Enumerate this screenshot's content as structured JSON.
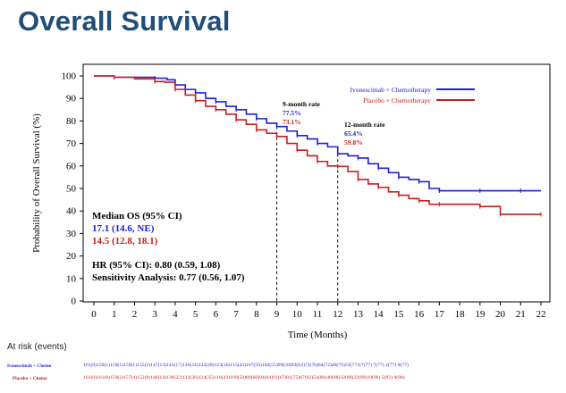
{
  "slide": {
    "title": "Overall Survival"
  },
  "chart_data": {
    "type": "line",
    "xlabel": "Time (Months)",
    "ylabel": "Probability of Overall Survival (%)",
    "xlim": [
      0,
      22
    ],
    "ylim": [
      0,
      100
    ],
    "xticks": [
      0,
      1,
      2,
      3,
      4,
      5,
      6,
      7,
      8,
      9,
      10,
      11,
      12,
      13,
      14,
      15,
      16,
      17,
      18,
      19,
      20,
      21,
      22
    ],
    "yticks": [
      0,
      10,
      20,
      30,
      40,
      50,
      60,
      70,
      80,
      90,
      100
    ],
    "grid": false,
    "legend_position": "top-right",
    "series": [
      {
        "name": "Ivonescimab + Chemotherapy",
        "color": "#1f1fd6",
        "points": [
          [
            0,
            100
          ],
          [
            0.5,
            100
          ],
          [
            1.0,
            99.4
          ],
          [
            2.0,
            99.4
          ],
          [
            3.0,
            99
          ],
          [
            3.6,
            98.3
          ],
          [
            4.0,
            96
          ],
          [
            4.5,
            94
          ],
          [
            5.0,
            92.5
          ],
          [
            5.5,
            90
          ],
          [
            6.0,
            88.5
          ],
          [
            6.5,
            86.5
          ],
          [
            7.0,
            85
          ],
          [
            7.5,
            83
          ],
          [
            8.0,
            81
          ],
          [
            8.5,
            79
          ],
          [
            9.0,
            77.5
          ],
          [
            9.5,
            75.5
          ],
          [
            10.0,
            73.5
          ],
          [
            10.5,
            72
          ],
          [
            11.0,
            70
          ],
          [
            11.5,
            68.5
          ],
          [
            12.0,
            65.4
          ],
          [
            12.5,
            64.5
          ],
          [
            13.0,
            63.5
          ],
          [
            13.5,
            61
          ],
          [
            14.0,
            59
          ],
          [
            14.5,
            57
          ],
          [
            15.0,
            55
          ],
          [
            15.5,
            54
          ],
          [
            16.0,
            53
          ],
          [
            16.5,
            50
          ],
          [
            17.0,
            49
          ],
          [
            18.0,
            49
          ],
          [
            19.0,
            49
          ],
          [
            20.0,
            49
          ],
          [
            21.0,
            49
          ],
          [
            22.0,
            49
          ]
        ]
      },
      {
        "name": "Placebo + Chemotherapy",
        "color": "#c81e1e",
        "points": [
          [
            0,
            100
          ],
          [
            0.5,
            100
          ],
          [
            1.0,
            99.4
          ],
          [
            2.0,
            98.7
          ],
          [
            3.0,
            97.5
          ],
          [
            3.5,
            97.2
          ],
          [
            4.0,
            94
          ],
          [
            4.5,
            91.5
          ],
          [
            5.0,
            89
          ],
          [
            5.5,
            86.5
          ],
          [
            6.0,
            85
          ],
          [
            6.5,
            83
          ],
          [
            7.0,
            80.5
          ],
          [
            7.5,
            78.5
          ],
          [
            8.0,
            76
          ],
          [
            8.5,
            74.5
          ],
          [
            9.0,
            73.1
          ],
          [
            9.5,
            70
          ],
          [
            10.0,
            67
          ],
          [
            10.5,
            64.5
          ],
          [
            11.0,
            62
          ],
          [
            11.5,
            60
          ],
          [
            12.0,
            59.8
          ],
          [
            12.5,
            57.5
          ],
          [
            13.0,
            54
          ],
          [
            13.5,
            52
          ],
          [
            14.0,
            50.5
          ],
          [
            14.5,
            48.5
          ],
          [
            15.0,
            47
          ],
          [
            15.5,
            45.5
          ],
          [
            16.0,
            44.5
          ],
          [
            16.5,
            43
          ],
          [
            17.0,
            43
          ],
          [
            18.0,
            43
          ],
          [
            19.0,
            42
          ],
          [
            19.5,
            42
          ],
          [
            20.0,
            38.5
          ],
          [
            21.0,
            38.5
          ],
          [
            22.0,
            38.5
          ]
        ]
      }
    ],
    "annotations": {
      "nine_month": {
        "title": "9-month rate",
        "ivo": "77.5%",
        "pbo": "73.1%",
        "x": 9
      },
      "twelve_month": {
        "title": "12-month rate",
        "ivo": "65.4%",
        "pbo": "59.8%",
        "x": 12
      }
    },
    "stats": {
      "median_title": "Median OS (95% CI)",
      "median_ivo": "17.1 (14.6, NE)",
      "median_pbo": "14.5 (12.8, 18.1)",
      "hr": "HR (95% CI): 0.80 (0.59, 1.08)",
      "sensitivity": "Sensitivity Analysis: 0.77 (0.56, 1.07)"
    },
    "at_risk": {
      "title": "At risk (events)",
      "rows": [
        {
          "label": "Ivonescimab + Chemo",
          "color": "#1f1fd6",
          "values": "161(0)159(1)159(1)159(1)155(5)147(13)143(17)136(24)132(28)123(36)115(43)107(50)102(55)99(58)93(64)73(70)64(72)48(76)33(77)17(77)  7(77)  2(77)  0(77)"
        },
        {
          "label": "Placebo + Chemo",
          "color": "#c81e1e",
          "values": "161(0)161(0)159(2)157(4)152(8)146(14)138(22)132(28)124(35)116(43)109(50)89(60)94(64)91(67)81(75)67(82)54(86)40(88)32(88)22(89)10(90)  5(92)  0(90)"
        }
      ]
    }
  }
}
